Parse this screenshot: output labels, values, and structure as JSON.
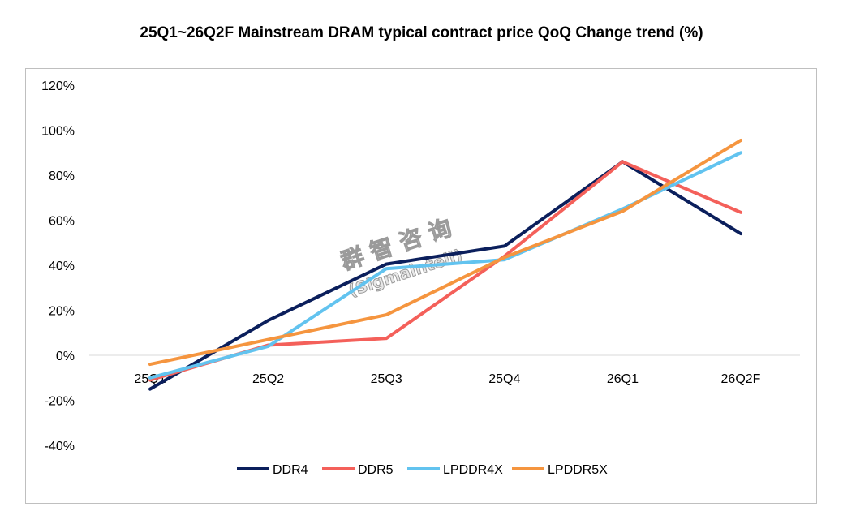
{
  "chart_data": {
    "type": "line",
    "title": "25Q1~26Q2F Mainstream DRAM typical contract price QoQ Change trend (%)",
    "xlabel": "",
    "ylabel": "",
    "categories": [
      "25Q1",
      "25Q2",
      "25Q3",
      "25Q4",
      "26Q1",
      "26Q2F"
    ],
    "ylim": [
      -40,
      120
    ],
    "yticks": [
      -40,
      -20,
      0,
      20,
      40,
      60,
      80,
      100,
      120
    ],
    "ytick_labels": [
      "-40%",
      "-20%",
      "0%",
      "20%",
      "40%",
      "60%",
      "80%",
      "100%",
      "120%"
    ],
    "grid": false,
    "legend": "bottom",
    "series": [
      {
        "name": "DDR4",
        "color": "#0b1f5c",
        "values": [
          -15,
          15.5,
          40.5,
          48.5,
          86,
          54
        ]
      },
      {
        "name": "DDR5",
        "color": "#f4605a",
        "values": [
          -11,
          4.5,
          7.5,
          44,
          86,
          63.5
        ]
      },
      {
        "name": "LPDDR4X",
        "color": "#62c3ef",
        "values": [
          -10,
          4,
          38.5,
          42.5,
          65,
          90
        ]
      },
      {
        "name": "LPDDR5X",
        "color": "#f5953f",
        "values": [
          -4,
          7,
          18,
          43.5,
          64,
          95.5
        ]
      }
    ],
    "watermark": {
      "line1": "群 智 咨 询",
      "line2": "(Sigmaintell)"
    }
  }
}
